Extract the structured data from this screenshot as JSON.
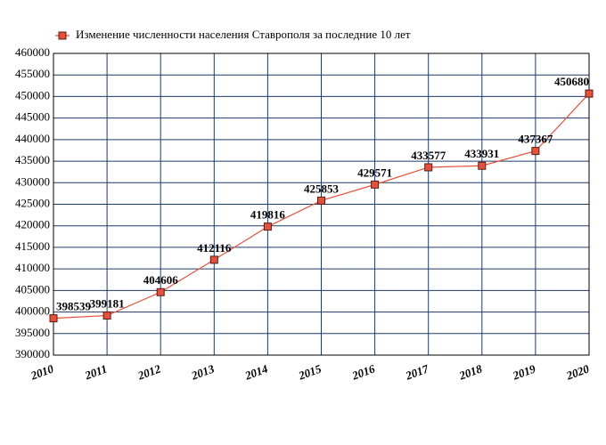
{
  "chart_data": {
    "type": "line",
    "x": [
      2010,
      2011,
      2012,
      2013,
      2014,
      2015,
      2016,
      2017,
      2018,
      2019,
      2020
    ],
    "series": [
      {
        "name": "Изменение численности населения Ставрополя за последние 10 лет",
        "color": "#e8503a",
        "values": [
          398539,
          399181,
          404606,
          412116,
          419816,
          425853,
          429571,
          433577,
          433931,
          437367,
          450680
        ]
      }
    ],
    "xlim": [
      2010,
      2020
    ],
    "xticks": [
      2010,
      2011,
      2012,
      2013,
      2014,
      2015,
      2016,
      2017,
      2018,
      2019,
      2020
    ],
    "ylim": [
      390000,
      460000
    ],
    "yticks": [
      390000,
      395000,
      400000,
      405000,
      410000,
      415000,
      420000,
      425000,
      430000,
      435000,
      440000,
      445000,
      450000,
      455000,
      460000
    ],
    "grid": true,
    "legend": "top"
  }
}
